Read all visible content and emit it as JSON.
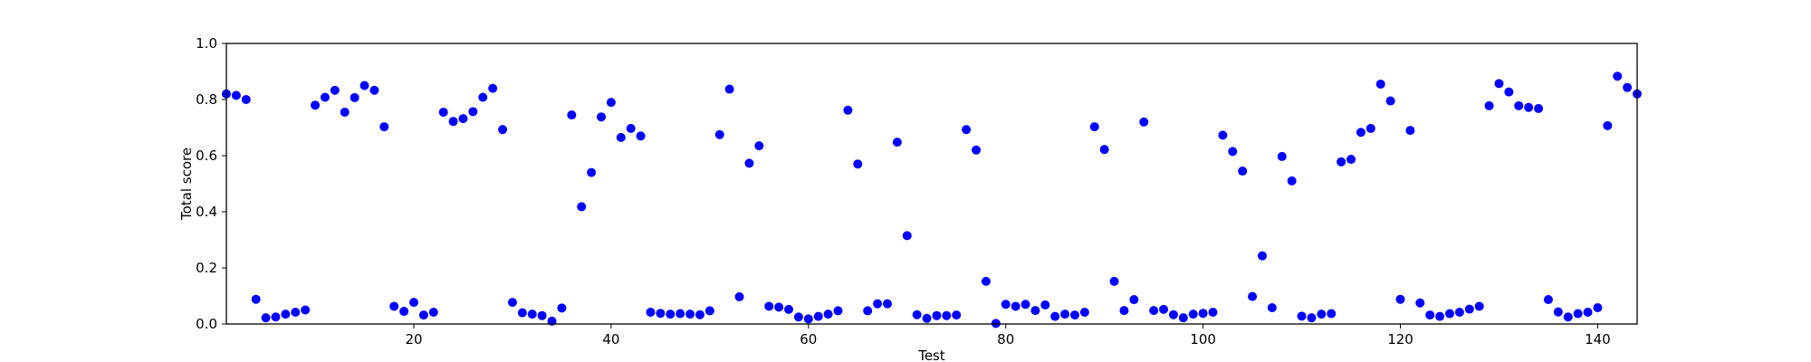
{
  "chart_data": {
    "type": "scatter",
    "title": "",
    "xlabel": "Test",
    "ylabel": "Total score",
    "xlim": [
      1,
      144
    ],
    "ylim": [
      0,
      1.0
    ],
    "xticks": [
      20,
      40,
      60,
      80,
      100,
      120,
      140
    ],
    "xtick_labels": [
      "20",
      "40",
      "60",
      "80",
      "100",
      "120",
      "140"
    ],
    "yticks": [
      0,
      0.2,
      0.4,
      0.6,
      0.8,
      1.0
    ],
    "ytick_labels": [
      "0.0",
      "0.2",
      "0.4",
      "0.6",
      "0.8",
      "1.0"
    ],
    "grid": false,
    "marker_color": "#0000ff",
    "series": [
      {
        "x": [
          1,
          2,
          3,
          4,
          5,
          6,
          7,
          8,
          9,
          10,
          11,
          12,
          13,
          14,
          15,
          16,
          17,
          18,
          19,
          20,
          21,
          22,
          23,
          24,
          25,
          26,
          27,
          28,
          29,
          30,
          31,
          32,
          33,
          34,
          35,
          36,
          37,
          38,
          39,
          40,
          41,
          42,
          43,
          44,
          45,
          46,
          47,
          48,
          49,
          50,
          51,
          52,
          53,
          54,
          55,
          56,
          57,
          58,
          59,
          60,
          61,
          62,
          63,
          64,
          65,
          66,
          67,
          68,
          69,
          70,
          71,
          72,
          73,
          74,
          75,
          76,
          77,
          78,
          79,
          80,
          81,
          82,
          83,
          84,
          85,
          86,
          87,
          88,
          89,
          90,
          91,
          92,
          93,
          94,
          95,
          96,
          97,
          98,
          99,
          100,
          101,
          102,
          103,
          104,
          105,
          106,
          107,
          108,
          109,
          110,
          111,
          112,
          113,
          114,
          115,
          116,
          117,
          118,
          119,
          120,
          121,
          122,
          123,
          124,
          125,
          126,
          127,
          128,
          129,
          130,
          131,
          132,
          133,
          134,
          135,
          136,
          137,
          138,
          139,
          140,
          141,
          142,
          143,
          144
        ],
        "y": [
          0.82,
          0.815,
          0.8,
          0.088,
          0.022,
          0.025,
          0.035,
          0.042,
          0.05,
          0.78,
          0.808,
          0.833,
          0.755,
          0.807,
          0.85,
          0.833,
          0.703,
          0.063,
          0.045,
          0.077,
          0.032,
          0.042,
          0.755,
          0.722,
          0.732,
          0.757,
          0.808,
          0.84,
          0.693,
          0.077,
          0.04,
          0.035,
          0.03,
          0.01,
          0.057,
          0.745,
          0.418,
          0.54,
          0.738,
          0.79,
          0.665,
          0.697,
          0.67,
          0.042,
          0.038,
          0.035,
          0.037,
          0.035,
          0.033,
          0.047,
          0.675,
          0.837,
          0.097,
          0.573,
          0.635,
          0.063,
          0.06,
          0.052,
          0.025,
          0.018,
          0.027,
          0.035,
          0.047,
          0.762,
          0.57,
          0.047,
          0.072,
          0.072,
          0.648,
          0.315,
          0.033,
          0.02,
          0.03,
          0.03,
          0.032,
          0.693,
          0.62,
          0.152,
          0.002,
          0.07,
          0.063,
          0.07,
          0.048,
          0.068,
          0.027,
          0.035,
          0.032,
          0.042,
          0.703,
          0.622,
          0.152,
          0.048,
          0.087,
          0.72,
          0.048,
          0.052,
          0.033,
          0.022,
          0.035,
          0.038,
          0.042,
          0.673,
          0.615,
          0.545,
          0.098,
          0.243,
          0.058,
          0.597,
          0.51,
          0.028,
          0.022,
          0.035,
          0.037,
          0.578,
          0.587,
          0.683,
          0.697,
          0.855,
          0.795,
          0.088,
          0.69,
          0.075,
          0.032,
          0.027,
          0.037,
          0.042,
          0.053,
          0.063,
          0.778,
          0.857,
          0.827,
          0.778,
          0.772,
          0.768,
          0.087,
          0.043,
          0.025,
          0.037,
          0.042,
          0.058,
          0.707,
          0.883,
          0.843,
          0.82
        ]
      }
    ]
  }
}
